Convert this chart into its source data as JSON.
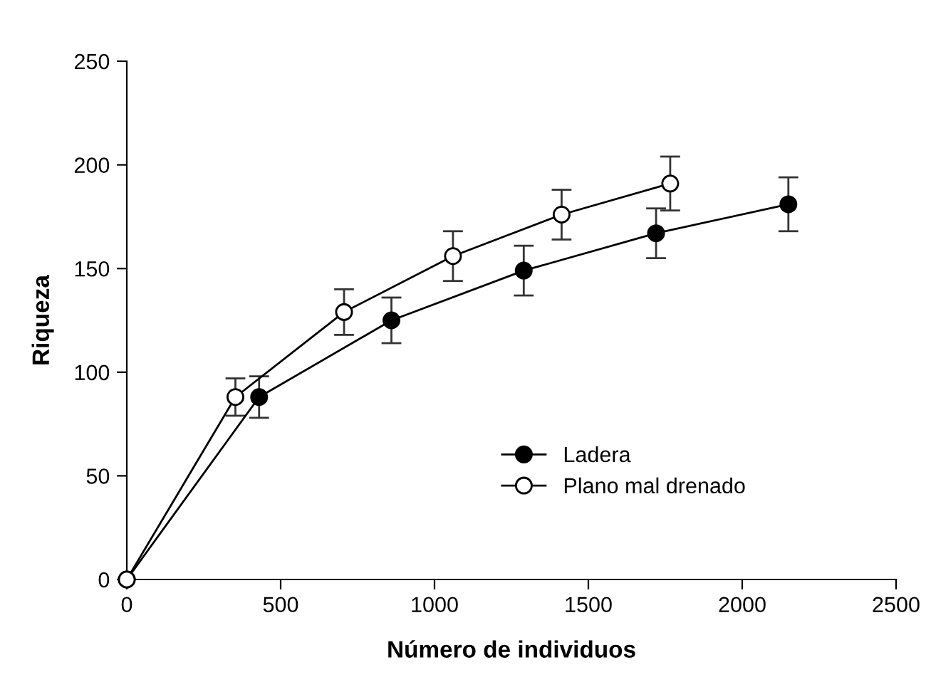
{
  "chart_data": {
    "type": "line",
    "xlabel": "Número de individuos",
    "ylabel": "Riqueza",
    "xlim": [
      0,
      2500
    ],
    "xticks": [
      0,
      500,
      1000,
      1500,
      2000,
      2500
    ],
    "ylim": [
      0,
      250
    ],
    "yticks": [
      0,
      50,
      100,
      150,
      200,
      250
    ],
    "grid": false,
    "legend": "bottom right",
    "marker": "circle",
    "line_style": "solid",
    "series": [
      {
        "name": "Ladera",
        "color": "#000000",
        "colors": [
          "#000000",
          "#000000",
          "#000000",
          "#000000",
          "#000000",
          "#000000"
        ],
        "x": [
          0,
          430,
          860,
          1290,
          1720,
          2150
        ],
        "values": [
          0,
          88,
          125,
          149,
          167,
          181
        ],
        "errors": [
          null,
          10,
          11,
          12,
          12,
          13
        ]
      },
      {
        "name": "Plano mal drenado",
        "color": "#000000",
        "colors": [
          "#ffffff",
          "#ffffff",
          "#ffffff",
          "#ffffff",
          "#ffffff",
          "#ffffff"
        ],
        "x": [
          0,
          353,
          706,
          1060,
          1413,
          1766
        ],
        "values": [
          0,
          88,
          129,
          156,
          176,
          191
        ],
        "errors": [
          null,
          9,
          11,
          12,
          12,
          13
        ]
      }
    ]
  }
}
